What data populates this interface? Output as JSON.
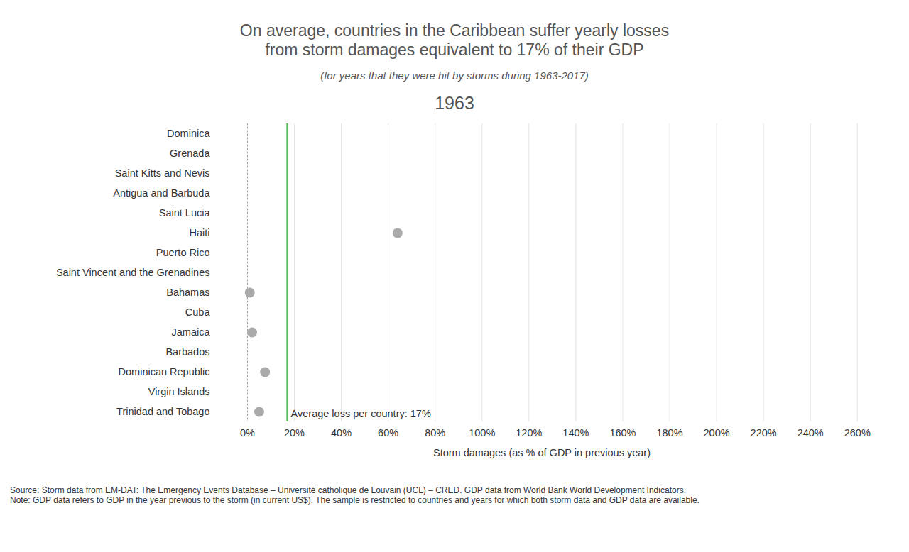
{
  "chart_data": {
    "type": "scatter",
    "orientation": "horizontal",
    "title": "On average, countries in the Caribbean suffer yearly losses\nfrom storm damages equivalent to 17% of their GDP",
    "subtitle": "(for years that they were hit by storms during 1963-2017)",
    "year": "1963",
    "categories": [
      "Dominica",
      "Grenada",
      "Saint Kitts and Nevis",
      "Antigua and Barbuda",
      "Saint Lucia",
      "Haiti",
      "Puerto Rico",
      "Saint Vincent and the Grenadines",
      "Bahamas",
      "Cuba",
      "Jamaica",
      "Barbados",
      "Dominican Republic",
      "Virgin Islands",
      "Trinidad and Tobago"
    ],
    "values": [
      null,
      null,
      null,
      null,
      null,
      64,
      null,
      null,
      1,
      null,
      2,
      null,
      7.5,
      null,
      5
    ],
    "color": "#aaaaaa",
    "average": 17,
    "annotation": "Average loss per country: 17%",
    "x_label": "Storm damages (as % of GDP in previous year)",
    "xlim": [
      -13,
      264
    ],
    "xticks": [
      {
        "value": 0,
        "label": "0%"
      },
      {
        "value": 20,
        "label": "20%"
      },
      {
        "value": 40,
        "label": "40%"
      },
      {
        "value": 60,
        "label": "60%"
      },
      {
        "value": 80,
        "label": "80%"
      },
      {
        "value": 100,
        "label": "100%"
      },
      {
        "value": 120,
        "label": "120%"
      },
      {
        "value": 140,
        "label": "140%"
      },
      {
        "value": 160,
        "label": "160%"
      },
      {
        "value": 180,
        "label": "180%"
      },
      {
        "value": 200,
        "label": "200%"
      },
      {
        "value": 220,
        "label": "220%"
      },
      {
        "value": 240,
        "label": "240%"
      },
      {
        "value": 260,
        "label": "260%"
      }
    ],
    "grid": true,
    "source": "Source: Storm data from EM-DAT: The Emergency Events Database – Université catholique de Louvain (UCL) – CRED. GDP data from World Bank World Development Indicators.",
    "note": "Note: GDP data refers to GDP in the year previous to the storm (in current US$). The sample is restricted to countries and years for which both storm data and GDP data are available."
  }
}
